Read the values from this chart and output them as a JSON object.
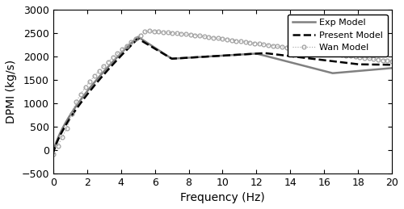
{
  "title": "",
  "xlabel": "Frequency (Hz)",
  "ylabel": "DPMI (kg/s)",
  "xlim": [
    0,
    20
  ],
  "ylim": [
    -500,
    3000
  ],
  "xticks": [
    0,
    2,
    4,
    6,
    8,
    10,
    12,
    14,
    16,
    18,
    20
  ],
  "yticks": [
    -500,
    0,
    500,
    1000,
    1500,
    2000,
    2500,
    3000
  ],
  "exp_color": "#808080",
  "present_color": "#000000",
  "wan_color": "#a0a0a0",
  "legend_entries": [
    "Exp Model",
    "Present Model",
    "Wan Model"
  ],
  "background_color": "#ffffff"
}
